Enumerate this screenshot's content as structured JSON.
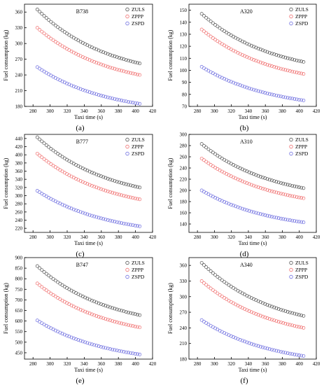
{
  "figure": {
    "x_label": "Taxi time (s)",
    "y_label": "Fuel consumption (kg)"
  },
  "series_styles": [
    {
      "name": "ZULS",
      "color": "#555555"
    },
    {
      "name": "ZPPP",
      "color": "#f07070"
    },
    {
      "name": "ZSPD",
      "color": "#6f6fe0"
    }
  ],
  "chart_data": [
    {
      "panel": "(a)",
      "type": "scatter",
      "aircraft": "B738",
      "xlabel": "Taxi time (s)",
      "ylabel": "Fuel consumption (kg)",
      "xlim": [
        270,
        420
      ],
      "ylim": [
        180,
        375
      ],
      "xticks": [
        280,
        300,
        320,
        340,
        360,
        380,
        400,
        420
      ],
      "yticks": [
        180,
        210,
        240,
        270,
        300,
        330,
        360
      ],
      "legend_position": "top-right",
      "series": [
        {
          "name": "ZULS",
          "y_start": 365,
          "y_end": 262
        },
        {
          "name": "ZPPP",
          "y_start": 330,
          "y_end": 240
        },
        {
          "name": "ZSPD",
          "y_start": 255,
          "y_end": 185
        }
      ],
      "x_start": 285,
      "x_end": 405
    },
    {
      "panel": "(b)",
      "type": "scatter",
      "aircraft": "A320",
      "xlabel": "Taxi time (s)",
      "ylabel": "Fuel consumption (kg)",
      "xlim": [
        270,
        420
      ],
      "ylim": [
        70,
        155
      ],
      "xticks": [
        280,
        300,
        320,
        340,
        360,
        380,
        400,
        420
      ],
      "yticks": [
        70,
        80,
        90,
        100,
        110,
        120,
        130,
        140,
        150
      ],
      "legend_position": "top-right",
      "series": [
        {
          "name": "ZULS",
          "y_start": 147,
          "y_end": 107
        },
        {
          "name": "ZPPP",
          "y_start": 134,
          "y_end": 97
        },
        {
          "name": "ZSPD",
          "y_start": 103,
          "y_end": 75
        }
      ],
      "x_start": 285,
      "x_end": 405
    },
    {
      "panel": "(c)",
      "type": "scatter",
      "aircraft": "B777",
      "xlabel": "Taxi time (s)",
      "ylabel": "Fuel consumption (kg)",
      "xlim": [
        270,
        420
      ],
      "ylim": [
        210,
        450
      ],
      "xticks": [
        280,
        300,
        320,
        340,
        360,
        380,
        400,
        420
      ],
      "yticks": [
        220,
        240,
        260,
        280,
        300,
        320,
        340,
        360,
        380,
        400,
        420,
        440
      ],
      "legend_position": "top-right",
      "series": [
        {
          "name": "ZULS",
          "y_start": 443,
          "y_end": 320
        },
        {
          "name": "ZPPP",
          "y_start": 403,
          "y_end": 291
        },
        {
          "name": "ZSPD",
          "y_start": 312,
          "y_end": 225
        }
      ],
      "x_start": 285,
      "x_end": 405
    },
    {
      "panel": "(d)",
      "type": "scatter",
      "aircraft": "A310",
      "xlabel": "Taxi time (s)",
      "ylabel": "Fuel consumption (kg)",
      "xlim": [
        270,
        420
      ],
      "ylim": [
        125,
        300
      ],
      "xticks": [
        280,
        300,
        320,
        340,
        360,
        380,
        400,
        420
      ],
      "yticks": [
        140,
        160,
        180,
        200,
        220,
        240,
        260,
        280,
        300
      ],
      "legend_position": "top-right",
      "series": [
        {
          "name": "ZULS",
          "y_start": 283,
          "y_end": 204
        },
        {
          "name": "ZPPP",
          "y_start": 257,
          "y_end": 186
        },
        {
          "name": "ZSPD",
          "y_start": 200,
          "y_end": 143
        }
      ],
      "x_start": 285,
      "x_end": 405
    },
    {
      "panel": "(e)",
      "type": "scatter",
      "aircraft": "B747",
      "xlabel": "Taxi time (s)",
      "ylabel": "Fuel consumption (kg)",
      "xlim": [
        270,
        420
      ],
      "ylim": [
        420,
        900
      ],
      "xticks": [
        280,
        300,
        320,
        340,
        360,
        380,
        400,
        420
      ],
      "yticks": [
        450,
        500,
        550,
        600,
        650,
        700,
        750,
        800,
        850,
        900
      ],
      "legend_position": "top-right",
      "series": [
        {
          "name": "ZULS",
          "y_start": 860,
          "y_end": 628
        },
        {
          "name": "ZPPP",
          "y_start": 778,
          "y_end": 570
        },
        {
          "name": "ZSPD",
          "y_start": 603,
          "y_end": 442
        }
      ],
      "x_start": 285,
      "x_end": 405
    },
    {
      "panel": "(f)",
      "type": "scatter",
      "aircraft": "A340",
      "xlabel": "Taxi time (s)",
      "ylabel": "Fuel consumption (kg)",
      "xlim": [
        270,
        420
      ],
      "ylim": [
        180,
        375
      ],
      "xticks": [
        280,
        300,
        320,
        340,
        360,
        380,
        400,
        420
      ],
      "yticks": [
        180,
        210,
        240,
        270,
        300,
        330,
        360
      ],
      "legend_position": "top-right",
      "series": [
        {
          "name": "ZULS",
          "y_start": 365,
          "y_end": 263
        },
        {
          "name": "ZPPP",
          "y_start": 330,
          "y_end": 240
        },
        {
          "name": "ZSPD",
          "y_start": 255,
          "y_end": 186
        }
      ],
      "x_start": 285,
      "x_end": 405
    }
  ]
}
